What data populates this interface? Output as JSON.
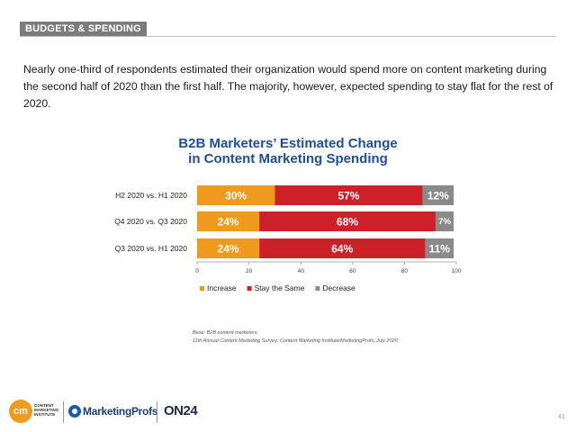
{
  "header": {
    "section": "BUDGETS & SPENDING"
  },
  "intro": "Nearly one-third of respondents estimated their organization would spend more on content marketing during the second half of 2020 than the first half. The majority, however, expected spending to stay flat for the rest of 2020.",
  "chart_data": {
    "type": "bar",
    "orientation": "horizontal",
    "stacked": true,
    "title_line1": "B2B Marketers’ Estimated Change",
    "title_line2": "in Content Marketing Spending",
    "categories": [
      "H2 2020 vs. H1 2020",
      "Q4 2020 vs. Q3 2020",
      "Q3 2020 vs. H1 2020"
    ],
    "series": [
      {
        "name": "Increase",
        "color": "#f09a1d",
        "values": [
          30,
          24,
          24
        ]
      },
      {
        "name": "Stay the Same",
        "color": "#cd2129",
        "values": [
          57,
          68,
          64
        ]
      },
      {
        "name": "Decrease",
        "color": "#8a8a8a",
        "values": [
          12,
          7,
          11
        ]
      }
    ],
    "xlim": [
      0,
      100
    ],
    "xticks": [
      0,
      20,
      40,
      60,
      80,
      100
    ],
    "legend_position": "bottom",
    "grid": false
  },
  "sources": {
    "line1": "Base: B2B content marketers.",
    "line2": "11th Annual Content Marketing Survey: Content Marketing Institute/MarketingProfs, July 2020"
  },
  "logos": {
    "cmi_mark": "cm",
    "cmi_text": "CONTENT MARKETING INSTITUTE",
    "marketingprofs": "MarketingProfs",
    "on24": "ON24"
  },
  "page_number": "41"
}
